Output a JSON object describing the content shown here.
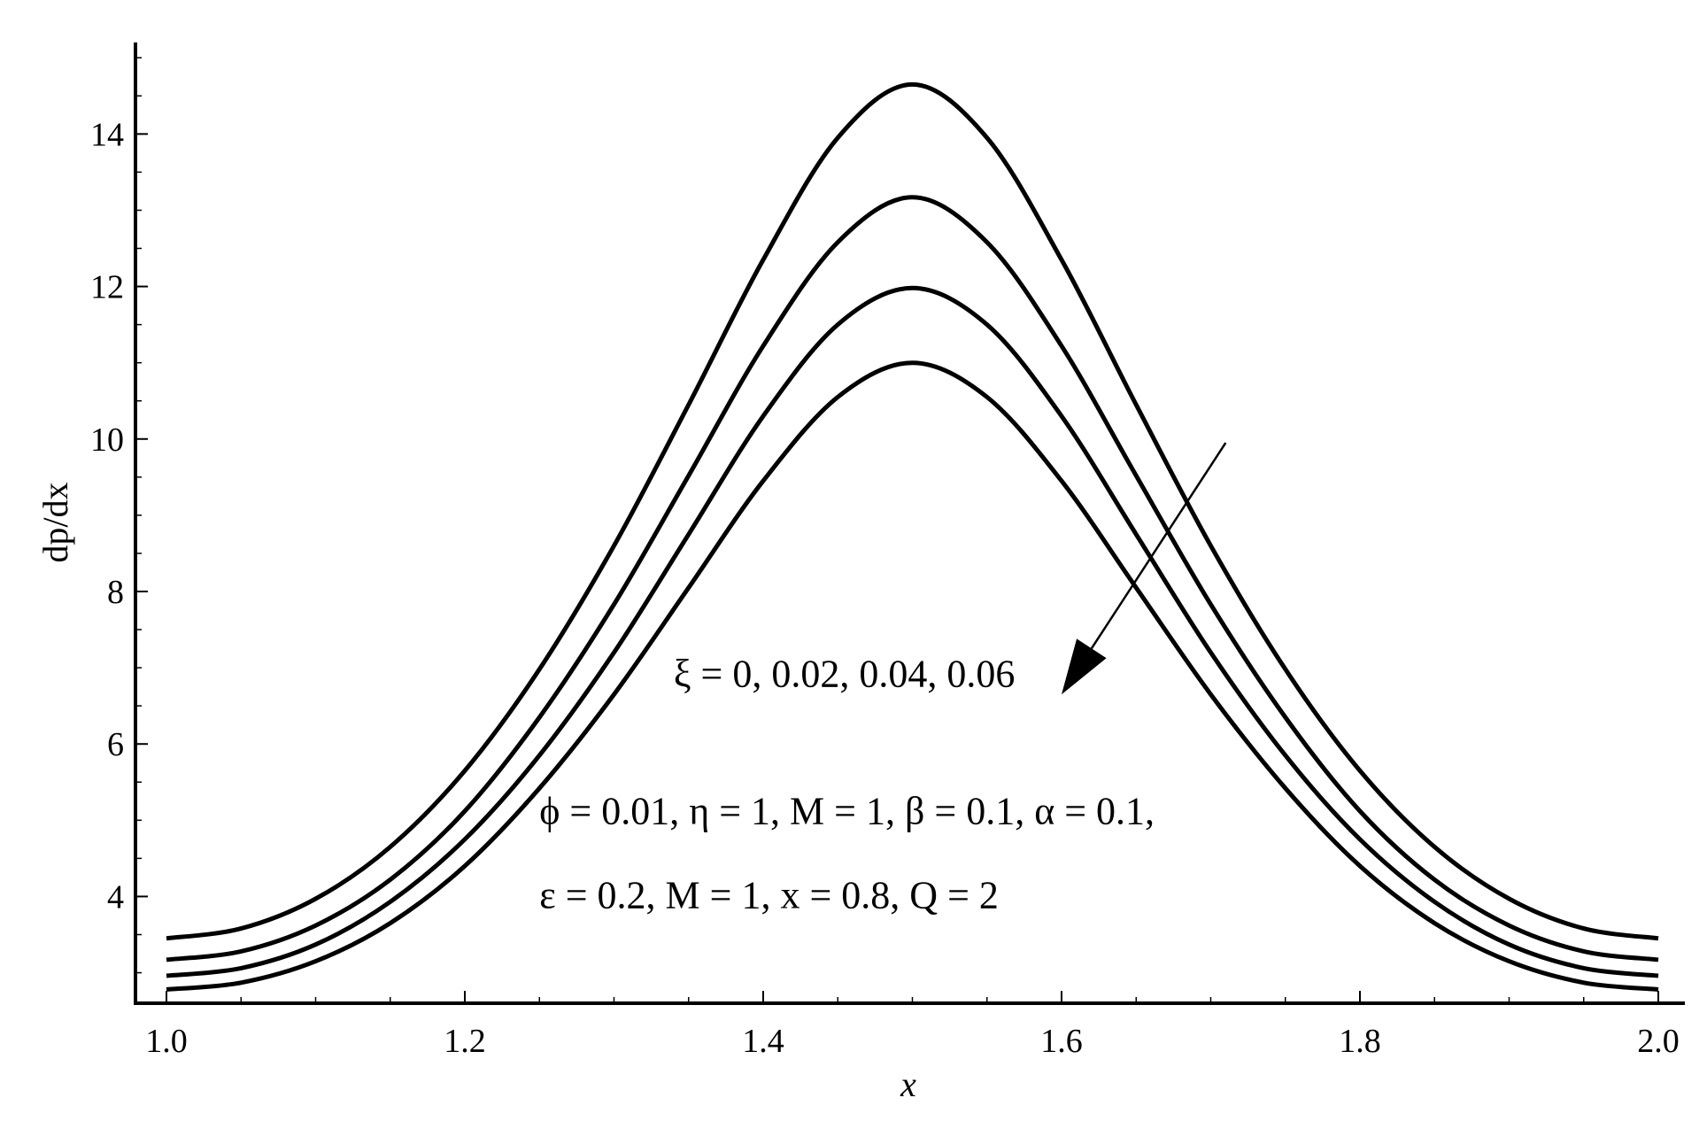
{
  "chart_data": {
    "type": "line",
    "title": "",
    "xlabel": "x",
    "ylabel": "dp/dx",
    "xlim": [
      1.0,
      2.0
    ],
    "ylim": [
      2.6,
      15.2
    ],
    "xticks": [
      1.0,
      1.2,
      1.4,
      1.6,
      1.8,
      2.0
    ],
    "xtick_labels": [
      "1.0",
      "1.2",
      "1.4",
      "1.6",
      "1.8",
      "2.0"
    ],
    "yticks": [
      4,
      6,
      8,
      10,
      12,
      14
    ],
    "ytick_labels": [
      "4",
      "6",
      "8",
      "10",
      "12",
      "14"
    ],
    "grid": false,
    "line_color": "#000000",
    "series": [
      {
        "x": [
          1.0,
          1.05,
          1.1,
          1.15,
          1.2,
          1.25,
          1.3,
          1.35,
          1.4,
          1.45,
          1.5,
          1.55,
          1.6,
          1.65,
          1.7,
          1.75,
          1.8,
          1.85,
          1.9,
          1.95,
          2.0
        ],
        "values": [
          3.45,
          3.58,
          3.97,
          4.65,
          5.65,
          6.98,
          8.6,
          10.45,
          12.35,
          13.95,
          14.65,
          13.95,
          12.35,
          10.45,
          8.6,
          6.98,
          5.65,
          4.65,
          3.97,
          3.58,
          3.45
        ]
      },
      {
        "x": [
          1.0,
          1.05,
          1.1,
          1.15,
          1.2,
          1.25,
          1.3,
          1.35,
          1.4,
          1.45,
          1.5,
          1.55,
          1.6,
          1.65,
          1.7,
          1.75,
          1.8,
          1.85,
          1.9,
          1.95,
          2.0
        ],
        "values": [
          3.17,
          3.28,
          3.62,
          4.22,
          5.12,
          6.35,
          7.83,
          9.52,
          11.22,
          12.58,
          13.17,
          12.58,
          11.22,
          9.52,
          7.83,
          6.35,
          5.12,
          4.22,
          3.62,
          3.28,
          3.17
        ]
      },
      {
        "x": [
          1.0,
          1.05,
          1.1,
          1.15,
          1.2,
          1.25,
          1.3,
          1.35,
          1.4,
          1.45,
          1.5,
          1.55,
          1.6,
          1.65,
          1.7,
          1.75,
          1.8,
          1.85,
          1.9,
          1.95,
          2.0
        ],
        "values": [
          2.96,
          3.06,
          3.37,
          3.93,
          4.75,
          5.85,
          7.2,
          8.75,
          10.3,
          11.5,
          11.98,
          11.5,
          10.3,
          8.75,
          7.2,
          5.85,
          4.75,
          3.93,
          3.37,
          3.06,
          2.96
        ]
      },
      {
        "x": [
          1.0,
          1.05,
          1.1,
          1.15,
          1.2,
          1.25,
          1.3,
          1.35,
          1.4,
          1.45,
          1.5,
          1.55,
          1.6,
          1.65,
          1.7,
          1.75,
          1.8,
          1.85,
          1.9,
          1.95,
          2.0
        ],
        "values": [
          2.78,
          2.87,
          3.15,
          3.65,
          4.4,
          5.42,
          6.65,
          8.05,
          9.45,
          10.55,
          11.0,
          10.55,
          9.45,
          8.05,
          6.65,
          5.42,
          4.4,
          3.65,
          3.15,
          2.87,
          2.78
        ]
      }
    ],
    "arrow": {
      "from": [
        1.71,
        9.95
      ],
      "to": [
        1.6,
        6.65
      ]
    },
    "annotations": [
      {
        "text": "ξ = 0, 0.02, 0.04, 0.06",
        "x": 1.34,
        "y": 6.75
      },
      {
        "text": "ϕ  = 0.01, η = 1, M = 1, β = 0.1, α = 0.1,",
        "x": 1.25,
        "y": 4.95
      },
      {
        "text": "ε = 0.2, M = 1, x = 0.8, Q = 2",
        "x": 1.25,
        "y": 3.85
      }
    ]
  }
}
